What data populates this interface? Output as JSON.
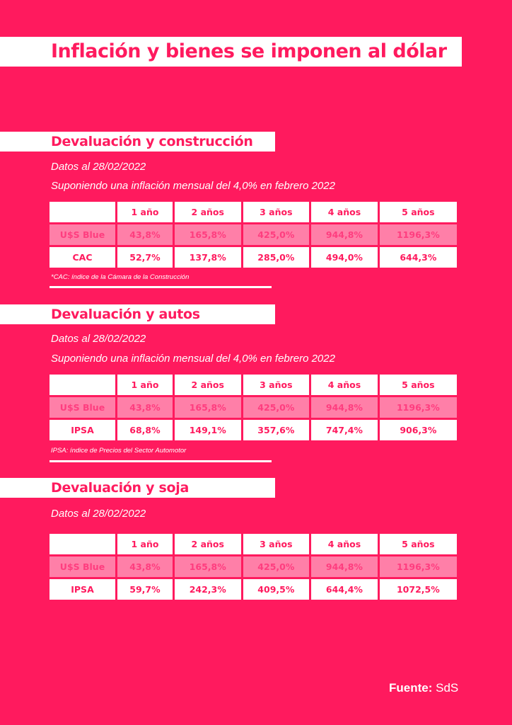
{
  "title": "Inflación y bienes se imponen al dólar",
  "sections": [
    {
      "heading": "Devaluación y construcción",
      "date": "Datos al 28/02/2022",
      "assumption": "Suponiendo una inflación mensual del 4,0% en febrero 2022",
      "columns": [
        "",
        "1 año",
        "2 años",
        "3 años",
        "4 años",
        "5 años"
      ],
      "rows": [
        [
          "U$S Blue",
          "43,8%",
          "165,8%",
          "425,0%",
          "944,8%",
          "1196,3%"
        ],
        [
          "CAC",
          "52,7%",
          "137,8%",
          "285,0%",
          "494,0%",
          "644,3%"
        ]
      ],
      "note": "*CAC: índice de la Cámara de la Construcción"
    },
    {
      "heading": "Devaluación y autos",
      "date": "Datos al 28/02/2022",
      "assumption": "Suponiendo una inflación mensual del 4,0% en febrero 2022",
      "columns": [
        "",
        "1 año",
        "2 años",
        "3 años",
        "4 años",
        "5 años"
      ],
      "rows": [
        [
          "U$S Blue",
          "43,8%",
          "165,8%",
          "425,0%",
          "944,8%",
          "1196,3%"
        ],
        [
          "IPSA",
          "68,8%",
          "149,1%",
          "357,6%",
          "747,4%",
          "906,3%"
        ]
      ],
      "note": "IPSA: índice de Precios del Sector Automotor"
    },
    {
      "heading": "Devaluación y soja",
      "date": "Datos al 28/02/2022",
      "columns": [
        "",
        "1 año",
        "2 años",
        "3 años",
        "4 años",
        "5 años"
      ],
      "rows": [
        [
          "U$S Blue",
          "43,8%",
          "165,8%",
          "425,0%",
          "944,8%",
          "1196,3%"
        ],
        [
          "IPSA",
          "59,7%",
          "242,3%",
          "409,5%",
          "644,4%",
          "1072,5%"
        ]
      ]
    }
  ],
  "source": {
    "label": "Fuente:",
    "value": "SdS"
  },
  "colors": {
    "background": "#ff1a5e",
    "highlight_row": "#ff7fa8"
  }
}
